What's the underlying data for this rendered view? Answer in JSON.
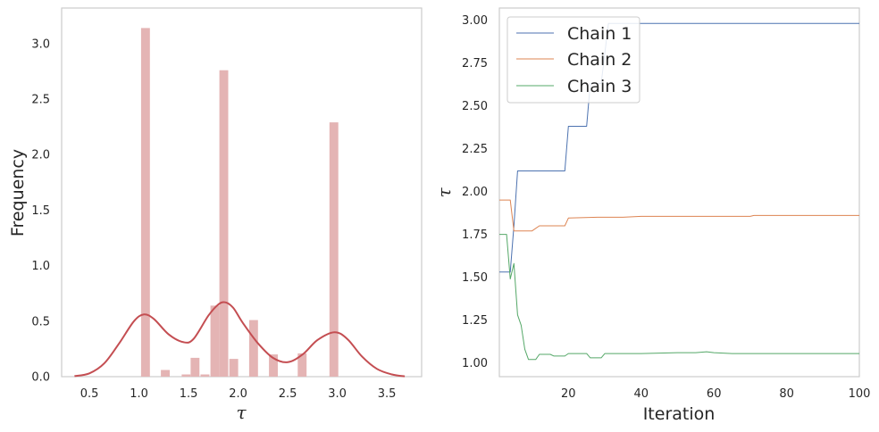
{
  "chart_data": [
    {
      "type": "bar",
      "subtype": "histogram-with-kde",
      "xlabel": "τ",
      "ylabel": "Frequency",
      "xlim": [
        0.22,
        3.85
      ],
      "ylim": [
        0,
        3.32
      ],
      "xticks": [
        "0.5",
        "1.0",
        "1.5",
        "2.0",
        "2.5",
        "3.0",
        "3.5"
      ],
      "yticks": [
        "0.0",
        "0.5",
        "1.0",
        "1.5",
        "2.0",
        "2.5",
        "3.0"
      ],
      "grid": false,
      "bar_color": "#e4b4b4",
      "kde_color": "#c44e52",
      "bins": [
        {
          "center": 1.07,
          "value": 3.14
        },
        {
          "center": 1.27,
          "value": 0.06
        },
        {
          "center": 1.48,
          "value": 0.02
        },
        {
          "center": 1.57,
          "value": 0.17
        },
        {
          "center": 1.67,
          "value": 0.02
        },
        {
          "center": 1.77,
          "value": 0.64
        },
        {
          "center": 1.86,
          "value": 2.76
        },
        {
          "center": 1.96,
          "value": 0.16
        },
        {
          "center": 2.16,
          "value": 0.51
        },
        {
          "center": 2.36,
          "value": 0.2
        },
        {
          "center": 2.65,
          "value": 0.21
        },
        {
          "center": 2.97,
          "value": 2.29
        }
      ],
      "kde": {
        "x": [
          0.35,
          0.5,
          0.65,
          0.8,
          0.95,
          1.05,
          1.15,
          1.3,
          1.45,
          1.55,
          1.7,
          1.8,
          1.87,
          1.95,
          2.05,
          2.2,
          2.35,
          2.5,
          2.65,
          2.8,
          2.97,
          3.1,
          3.25,
          3.4,
          3.55,
          3.68
        ],
        "y": [
          0.005,
          0.03,
          0.12,
          0.3,
          0.5,
          0.56,
          0.52,
          0.38,
          0.31,
          0.34,
          0.55,
          0.65,
          0.67,
          0.62,
          0.48,
          0.3,
          0.17,
          0.13,
          0.2,
          0.33,
          0.4,
          0.34,
          0.18,
          0.07,
          0.02,
          0.003
        ]
      }
    },
    {
      "type": "line",
      "xlabel": "Iteration",
      "ylabel": "τ",
      "xlim": [
        1,
        100
      ],
      "ylim": [
        0.92,
        3.07
      ],
      "xticks": [
        "20",
        "40",
        "60",
        "80",
        "100"
      ],
      "yticks": [
        "1.00",
        "1.25",
        "1.50",
        "1.75",
        "2.00",
        "2.25",
        "2.50",
        "2.75",
        "3.00"
      ],
      "grid": false,
      "legend_position": "top-left",
      "series": [
        {
          "name": "Chain 1",
          "color": "#4c72b0",
          "x": [
            1,
            4,
            5,
            6,
            19,
            20,
            25,
            26,
            29,
            31,
            100
          ],
          "y": [
            1.53,
            1.53,
            1.8,
            2.12,
            2.12,
            2.38,
            2.38,
            2.63,
            2.63,
            2.98,
            2.98
          ]
        },
        {
          "name": "Chain 2",
          "color": "#dd8452",
          "x": [
            1,
            4,
            5,
            10,
            12,
            19,
            20,
            28,
            35,
            40,
            50,
            70,
            71,
            100
          ],
          "y": [
            1.95,
            1.95,
            1.77,
            1.77,
            1.8,
            1.8,
            1.845,
            1.85,
            1.85,
            1.855,
            1.855,
            1.855,
            1.86,
            1.86
          ]
        },
        {
          "name": "Chain 3",
          "color": "#55a868",
          "x": [
            1,
            3,
            4,
            5,
            6,
            7,
            8,
            9,
            11,
            12,
            15,
            16,
            19,
            20,
            25,
            26,
            29,
            30,
            40,
            50,
            55,
            58,
            60,
            65,
            70,
            100
          ],
          "y": [
            1.75,
            1.75,
            1.49,
            1.58,
            1.28,
            1.22,
            1.08,
            1.02,
            1.02,
            1.05,
            1.05,
            1.04,
            1.04,
            1.055,
            1.055,
            1.03,
            1.03,
            1.055,
            1.055,
            1.06,
            1.06,
            1.065,
            1.06,
            1.055,
            1.055,
            1.055
          ]
        }
      ]
    }
  ]
}
